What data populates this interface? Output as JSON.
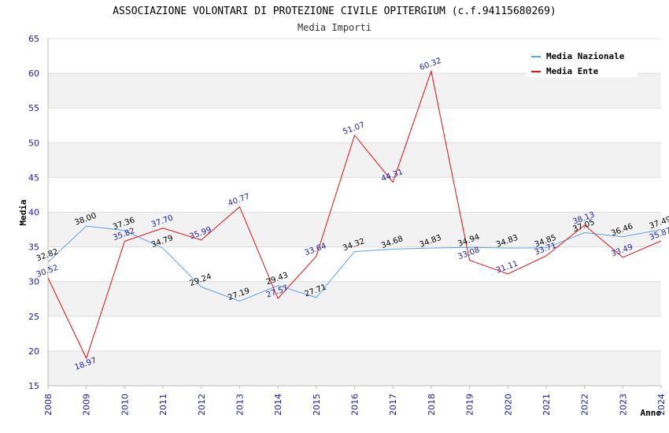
{
  "chart_data": {
    "type": "line",
    "title": "ASSOCIAZIONE VOLONTARI DI PROTEZIONE CIVILE OPITERGIUM (c.f.94115680269)",
    "subtitle": "Media Importi",
    "xlabel": "Anno",
    "ylabel": "Media",
    "ylim": [
      15,
      65
    ],
    "yticks": [
      "15",
      "20",
      "25",
      "30",
      "35",
      "40",
      "45",
      "50",
      "55",
      "60",
      "65"
    ],
    "categories": [
      "2008",
      "2009",
      "2010",
      "2011",
      "2012",
      "2013",
      "2014",
      "2015",
      "2016",
      "2017",
      "2018",
      "2019",
      "2020",
      "2021",
      "2022",
      "2023",
      "2024"
    ],
    "grid": true,
    "legend_position": "top-right",
    "series": [
      {
        "name": "Media Nazionale",
        "color": "#5ba3e0",
        "values": [
          32.82,
          38.0,
          37.36,
          34.79,
          29.24,
          27.19,
          29.43,
          27.71,
          34.32,
          34.68,
          34.83,
          34.94,
          34.83,
          34.85,
          37.05,
          36.46,
          37.49
        ],
        "labels": [
          "32.82",
          "38.00",
          "37.36",
          "34.79",
          "29.24",
          "27.19",
          "29.43",
          "27.71",
          "34.32",
          "34.68",
          "34.83",
          "34.94",
          "34.83",
          "34.85",
          "37.05",
          "36.46",
          "37.49"
        ]
      },
      {
        "name": "Media Ente",
        "color": "#e01010",
        "values": [
          30.52,
          18.97,
          35.82,
          37.7,
          35.99,
          40.77,
          27.57,
          33.64,
          51.07,
          44.31,
          60.32,
          33.08,
          31.11,
          33.71,
          38.13,
          33.49,
          35.87
        ],
        "labels": [
          "30.52",
          "18.97",
          "35.82",
          "37.70",
          "35.99",
          "40.77",
          "27.57",
          "33.64",
          "51.07",
          "44.31",
          "60.32",
          "33.08",
          "31.11",
          "33.71",
          "38.13",
          "33.49",
          "35.87"
        ]
      }
    ]
  }
}
